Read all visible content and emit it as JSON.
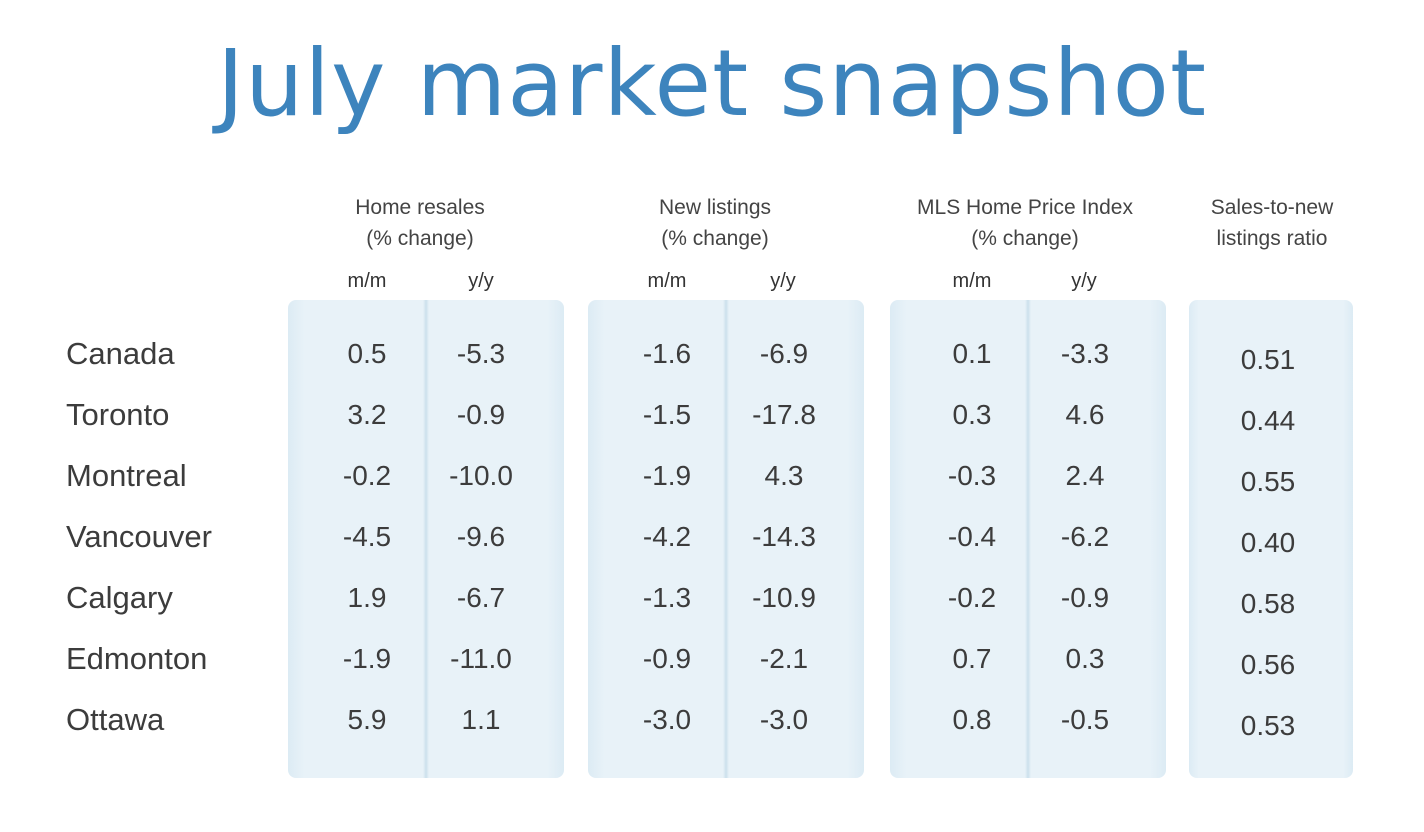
{
  "title": "July market snapshot",
  "headers": {
    "resales": [
      "Home resales",
      "(% change)"
    ],
    "listings": [
      "New listings",
      "(% change)"
    ],
    "hpi": [
      "MLS Home Price Index",
      "(% change)"
    ],
    "ratio": [
      "Sales-to-new",
      "listings ratio"
    ]
  },
  "subheaders": {
    "mm": "m/m",
    "yy": "y/y"
  },
  "colors": {
    "title": "#3d84bd",
    "panel": "#e8f2f8"
  },
  "chart_data": {
    "type": "table",
    "title": "July market snapshot",
    "columns": [
      "Home resales m/m",
      "Home resales y/y",
      "New listings m/m",
      "New listings y/y",
      "MLS Home Price Index m/m",
      "MLS Home Price Index y/y",
      "Sales-to-new listings ratio"
    ],
    "rows": [
      {
        "city": "Canada",
        "values": [
          "0.5",
          "-5.3",
          "-1.6",
          "-6.9",
          "0.1",
          "-3.3",
          "0.51"
        ]
      },
      {
        "city": "Toronto",
        "values": [
          "3.2",
          "-0.9",
          "-1.5",
          "-17.8",
          "0.3",
          "4.6",
          "0.44"
        ]
      },
      {
        "city": "Montreal",
        "values": [
          "-0.2",
          "-10.0",
          "-1.9",
          "4.3",
          "-0.3",
          "2.4",
          "0.55"
        ]
      },
      {
        "city": "Vancouver",
        "values": [
          "-4.5",
          "-9.6",
          "-4.2",
          "-14.3",
          "-0.4",
          "-6.2",
          "0.40"
        ]
      },
      {
        "city": "Calgary",
        "values": [
          "1.9",
          "-6.7",
          "-1.3",
          "-10.9",
          "-0.2",
          "-0.9",
          "0.58"
        ]
      },
      {
        "city": "Edmonton",
        "values": [
          "-1.9",
          "-11.0",
          "-0.9",
          "-2.1",
          "0.7",
          "0.3",
          "0.56"
        ]
      },
      {
        "city": "Ottawa",
        "values": [
          "5.9",
          "1.1",
          "-3.0",
          "-3.0",
          "0.8",
          "-0.5",
          "0.53"
        ]
      }
    ]
  }
}
